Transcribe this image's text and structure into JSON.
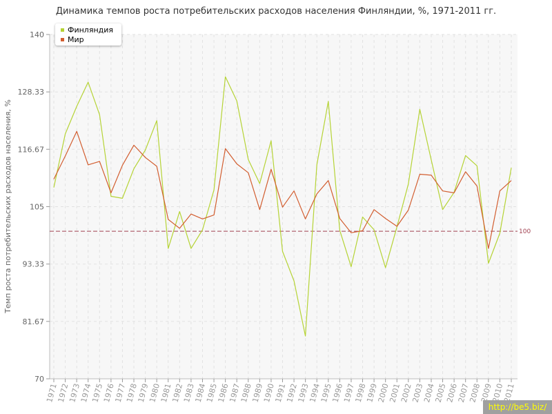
{
  "chart_data": {
    "type": "line",
    "title": "Динамика темпов роста потребительских расходов населения Финляндии, %, 1971-2011 гг.",
    "ylabel": "Темп роста потребительских расходов населения, %",
    "xlabel": "",
    "ylim": [
      70,
      140
    ],
    "yticks": [
      "140",
      "128.33",
      "116.67",
      "105",
      "93.33",
      "81.67",
      "70"
    ],
    "ytick_values": [
      140,
      128.33,
      116.67,
      105,
      93.33,
      81.67,
      70
    ],
    "categories": [
      "1971",
      "1972",
      "1973",
      "1974",
      "1975",
      "1976",
      "1977",
      "1978",
      "1979",
      "1980",
      "1981",
      "1982",
      "1983",
      "1984",
      "1985",
      "1986",
      "1987",
      "1988",
      "1989",
      "1990",
      "1991",
      "1992",
      "1993",
      "1994",
      "1995",
      "1996",
      "1997",
      "1998",
      "1999",
      "2000",
      "2001",
      "2002",
      "2003",
      "2004",
      "2005",
      "2006",
      "2007",
      "2008",
      "2009",
      "2010",
      "2011"
    ],
    "series": [
      {
        "name": "Финляндия",
        "color": "#b5d334",
        "values": [
          108.9,
          119.8,
          125.4,
          130.3,
          123.7,
          107.1,
          106.7,
          112.7,
          116.5,
          122.5,
          96.5,
          104.0,
          96.5,
          100.3,
          108.4,
          131.4,
          126.5,
          114.6,
          109.7,
          118.4,
          95.9,
          89.9,
          78.7,
          113.5,
          126.4,
          100.2,
          92.8,
          102.9,
          100.3,
          92.6,
          100.9,
          109.6,
          124.8,
          114.5,
          104.4,
          107.9,
          115.4,
          113.3,
          93.5,
          99.6,
          112.9
        ]
      },
      {
        "name": "Мир",
        "color": "#d25d2f",
        "values": [
          110.6,
          115.3,
          120.3,
          113.5,
          114.2,
          107.8,
          113.4,
          117.5,
          115.0,
          113.2,
          102.4,
          100.6,
          103.5,
          102.5,
          103.3,
          116.8,
          113.7,
          111.9,
          104.4,
          112.6,
          104.9,
          108.2,
          102.5,
          107.6,
          110.3,
          102.6,
          99.7,
          100.1,
          104.4,
          102.6,
          101.0,
          104.3,
          111.6,
          111.4,
          108.2,
          107.8,
          112.1,
          109.2,
          96.5,
          108.2,
          110.3
        ]
      }
    ],
    "reference_line": {
      "value": 100,
      "label": "100",
      "color": "#a04050"
    },
    "legend_position": "top-left",
    "grid": true
  },
  "watermark": "http://be5.biz/"
}
